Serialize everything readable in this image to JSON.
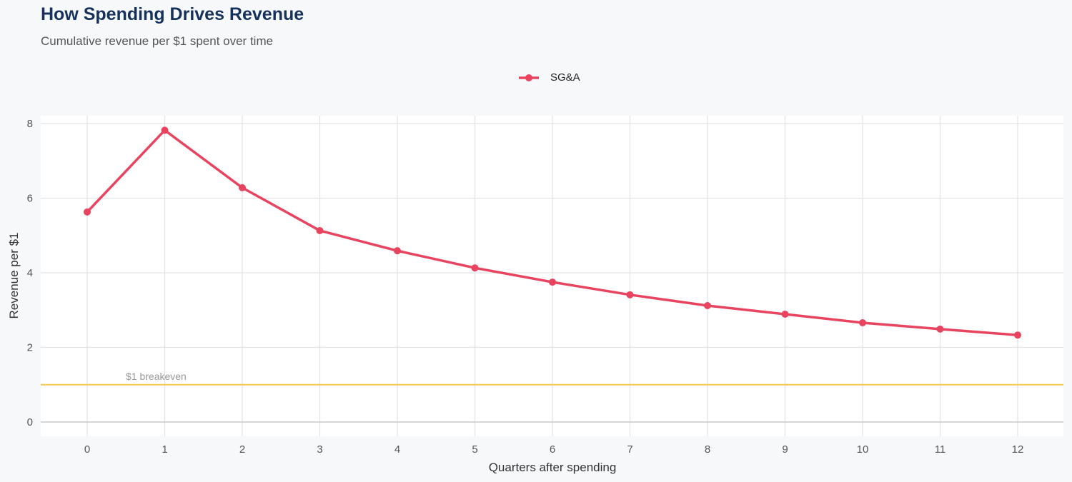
{
  "chart_data": {
    "type": "line",
    "title": "How Spending Drives Revenue",
    "subtitle": "Cumulative revenue per $1 spent over time",
    "xlabel": "Quarters after spending",
    "ylabel": "Revenue per $1",
    "x": [
      0,
      1,
      2,
      3,
      4,
      5,
      6,
      7,
      8,
      9,
      10,
      11,
      12
    ],
    "series": [
      {
        "name": "SG&A",
        "color": "#e8435f",
        "values": [
          5.63,
          7.82,
          6.28,
          5.13,
          4.59,
          4.13,
          3.75,
          3.41,
          3.12,
          2.89,
          2.66,
          2.49,
          2.33
        ]
      }
    ],
    "xlim": [
      -0.6,
      12.6
    ],
    "ylim": [
      -0.4,
      8.2
    ],
    "yticks": [
      0,
      2,
      4,
      6,
      8
    ],
    "xticks": [
      0,
      1,
      2,
      3,
      4,
      5,
      6,
      7,
      8,
      9,
      10,
      11,
      12
    ],
    "grid": true,
    "legend": "top",
    "reference_line": {
      "y": 1,
      "label": "$1 breakeven",
      "color": "#f9c74f"
    }
  }
}
